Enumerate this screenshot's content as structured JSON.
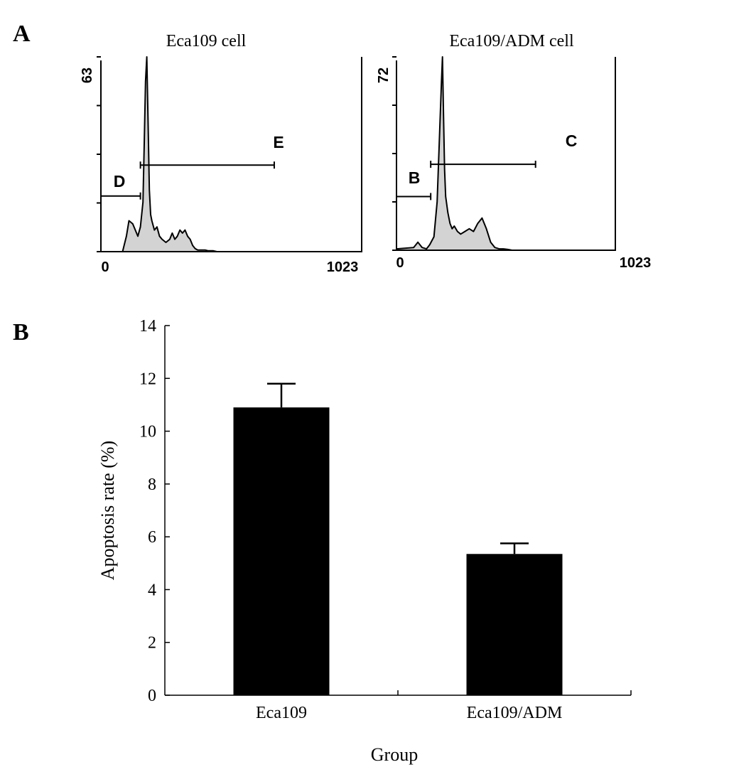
{
  "panels": {
    "a": {
      "letter": "A"
    },
    "b": {
      "letter": "B"
    }
  },
  "chart_data": [
    {
      "type": "area",
      "title": "Eca109 cell",
      "x_tick_labels": [
        "0",
        "1023"
      ],
      "y_tick_labels": [
        "63"
      ],
      "xlim": [
        0,
        1023
      ],
      "ylim": [
        0,
        63
      ],
      "fill_color": "#d3d3d3",
      "histogram": {
        "x": [
          60,
          85,
          100,
          110,
          125,
          145,
          155,
          165,
          170,
          175,
          180,
          185,
          190,
          195,
          200,
          210,
          220,
          230,
          240,
          255,
          270,
          280,
          290,
          300,
          310,
          320,
          330,
          340,
          350,
          360,
          370,
          380,
          390,
          400,
          410,
          420,
          430,
          440,
          455
        ],
        "y": [
          0,
          0,
          5,
          10,
          9,
          5,
          8,
          16,
          35,
          55,
          63,
          42,
          20,
          12,
          10,
          7,
          8,
          5,
          4,
          3,
          4,
          6,
          4,
          5,
          7,
          6,
          7,
          5,
          4,
          2,
          1,
          0.5,
          0.5,
          0.5,
          0.5,
          0.3,
          0.3,
          0.3,
          0
        ]
      },
      "gates": [
        {
          "label": "D",
          "x_range": [
            0,
            155
          ],
          "y_level": 18
        },
        {
          "label": "E",
          "x_range": [
            155,
            680
          ],
          "y_level": 28
        }
      ]
    },
    {
      "type": "area",
      "title": "Eca109/ADM cell",
      "x_tick_labels": [
        "0",
        "1023"
      ],
      "y_tick_labels": [
        "72"
      ],
      "xlim": [
        0,
        1023
      ],
      "ylim": [
        0,
        72
      ],
      "fill_color": "#d3d3d3",
      "histogram": {
        "x": [
          0,
          80,
          100,
          120,
          140,
          155,
          175,
          190,
          200,
          210,
          215,
          220,
          225,
          230,
          240,
          250,
          260,
          270,
          285,
          300,
          320,
          340,
          360,
          380,
          400,
          420,
          440,
          460,
          480,
          500,
          520,
          540
        ],
        "y": [
          0.5,
          1,
          3,
          1,
          0.5,
          2,
          5,
          18,
          40,
          62,
          72,
          50,
          30,
          20,
          14,
          10,
          8,
          9,
          7,
          6,
          7,
          8,
          7,
          10,
          12,
          8,
          3,
          1,
          0.5,
          0.5,
          0.3,
          0
        ]
      },
      "gates": [
        {
          "label": "B",
          "x_range": [
            0,
            160
          ],
          "y_level": 20
        },
        {
          "label": "C",
          "x_range": [
            160,
            650
          ],
          "y_level": 32
        }
      ]
    },
    {
      "type": "bar",
      "categories": [
        "Eca109",
        "Eca109/ADM"
      ],
      "values": [
        10.9,
        5.35
      ],
      "errors": [
        0.9,
        0.4
      ],
      "xlabel": "Group",
      "ylabel": "Apoptosis rate (%)",
      "ylim": [
        0,
        14
      ],
      "yticks": [
        0,
        2,
        4,
        6,
        8,
        10,
        12,
        14
      ],
      "bar_color": "#000000",
      "grid": false
    }
  ]
}
